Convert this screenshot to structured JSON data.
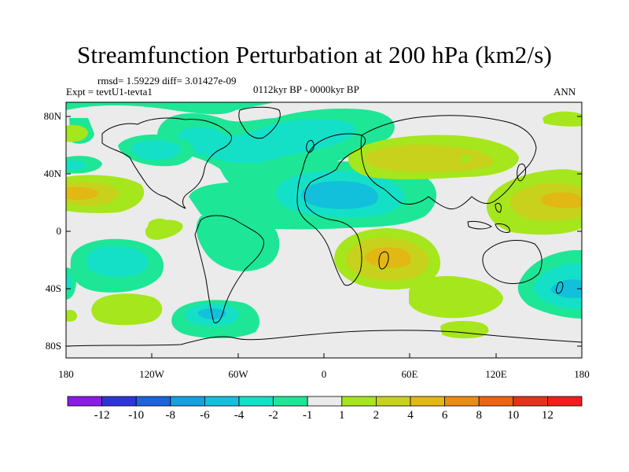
{
  "title": "Streamfunction Perturbation at 200 hPa (km2/s)",
  "stats_line": "rmsd= 1.59229 diff= 3.01427e-09",
  "experiment": "Expt = tevtU1-tevta1",
  "period": "0112kyr BP - 0000kyr BP",
  "season": "ANN",
  "lat_ticks": [
    "80N",
    "40N",
    "0",
    "40S",
    "80S"
  ],
  "lon_ticks": [
    "180",
    "120W",
    "60W",
    "0",
    "60E",
    "120E",
    "180"
  ],
  "colorbar": {
    "labels": [
      "-12",
      "-10",
      "-8",
      "-6",
      "-4",
      "-2",
      "-1",
      "1",
      "2",
      "4",
      "6",
      "8",
      "10",
      "12"
    ],
    "colors": [
      "#8a1ce6",
      "#2e34dc",
      "#1c64dc",
      "#15a0e0",
      "#12c0dc",
      "#14e0c8",
      "#1de696",
      "#ebebeb",
      "#a6e61c",
      "#c8d21c",
      "#e1b814",
      "#eb8c14",
      "#eb6414",
      "#e6321c",
      "#f01e1e"
    ]
  },
  "field_colors": {
    "zero": "#ebebeb",
    "neg_1": "#1de696",
    "neg_2": "#14e0c8",
    "neg_4": "#12c0dc",
    "pos_1": "#a6e61c",
    "pos_2": "#c8d21c",
    "pos_4": "#e1b814"
  }
}
